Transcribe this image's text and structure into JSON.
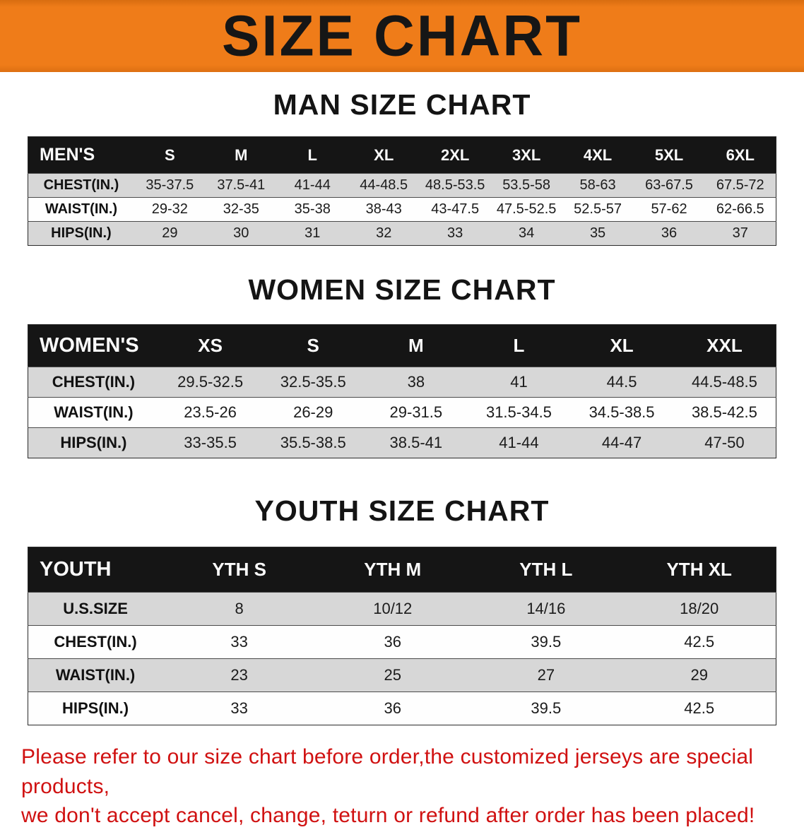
{
  "banner": {
    "title": "SIZE CHART"
  },
  "colors": {
    "accent_orange": "#ef7c19",
    "header_black": "#151515",
    "stripe_gray": "#d7d7d7",
    "warning_red": "#d01111"
  },
  "sections": [
    {
      "key": "men",
      "heading": "MAN SIZE CHART",
      "table": {
        "header": [
          "MEN'S",
          "S",
          "M",
          "L",
          "XL",
          "2XL",
          "3XL",
          "4XL",
          "5XL",
          "6XL"
        ],
        "rows": [
          [
            "CHEST(IN.)",
            "35-37.5",
            "37.5-41",
            "41-44",
            "44-48.5",
            "48.5-53.5",
            "53.5-58",
            "58-63",
            "63-67.5",
            "67.5-72"
          ],
          [
            "WAIST(IN.)",
            "29-32",
            "32-35",
            "35-38",
            "38-43",
            "43-47.5",
            "47.5-52.5",
            "52.5-57",
            "57-62",
            "62-66.5"
          ],
          [
            "HIPS(IN.)",
            "29",
            "30",
            "31",
            "32",
            "33",
            "34",
            "35",
            "36",
            "37"
          ]
        ]
      }
    },
    {
      "key": "women",
      "heading": "WOMEN SIZE CHART",
      "table": {
        "header": [
          "WOMEN'S",
          "XS",
          "S",
          "M",
          "L",
          "XL",
          "XXL"
        ],
        "rows": [
          [
            "CHEST(IN.)",
            "29.5-32.5",
            "32.5-35.5",
            "38",
            "41",
            "44.5",
            "44.5-48.5"
          ],
          [
            "WAIST(IN.)",
            "23.5-26",
            "26-29",
            "29-31.5",
            "31.5-34.5",
            "34.5-38.5",
            "38.5-42.5"
          ],
          [
            "HIPS(IN.)",
            "33-35.5",
            "35.5-38.5",
            "38.5-41",
            "41-44",
            "44-47",
            "47-50"
          ]
        ]
      }
    },
    {
      "key": "youth",
      "heading": "YOUTH SIZE CHART",
      "table": {
        "header": [
          "YOUTH",
          "YTH S",
          "YTH M",
          "YTH L",
          "YTH XL"
        ],
        "rows": [
          [
            "U.S.SIZE",
            "8",
            "10/12",
            "14/16",
            "18/20"
          ],
          [
            "CHEST(IN.)",
            "33",
            "36",
            "39.5",
            "42.5"
          ],
          [
            "WAIST(IN.)",
            "23",
            "25",
            "27",
            "29"
          ],
          [
            "HIPS(IN.)",
            "33",
            "36",
            "39.5",
            "42.5"
          ]
        ]
      }
    }
  ],
  "footer": {
    "line1": "Please refer to our size chart before order,the customized jerseys are special products,",
    "line2": "we don't accept cancel, change, teturn or refund after order has been placed!"
  }
}
